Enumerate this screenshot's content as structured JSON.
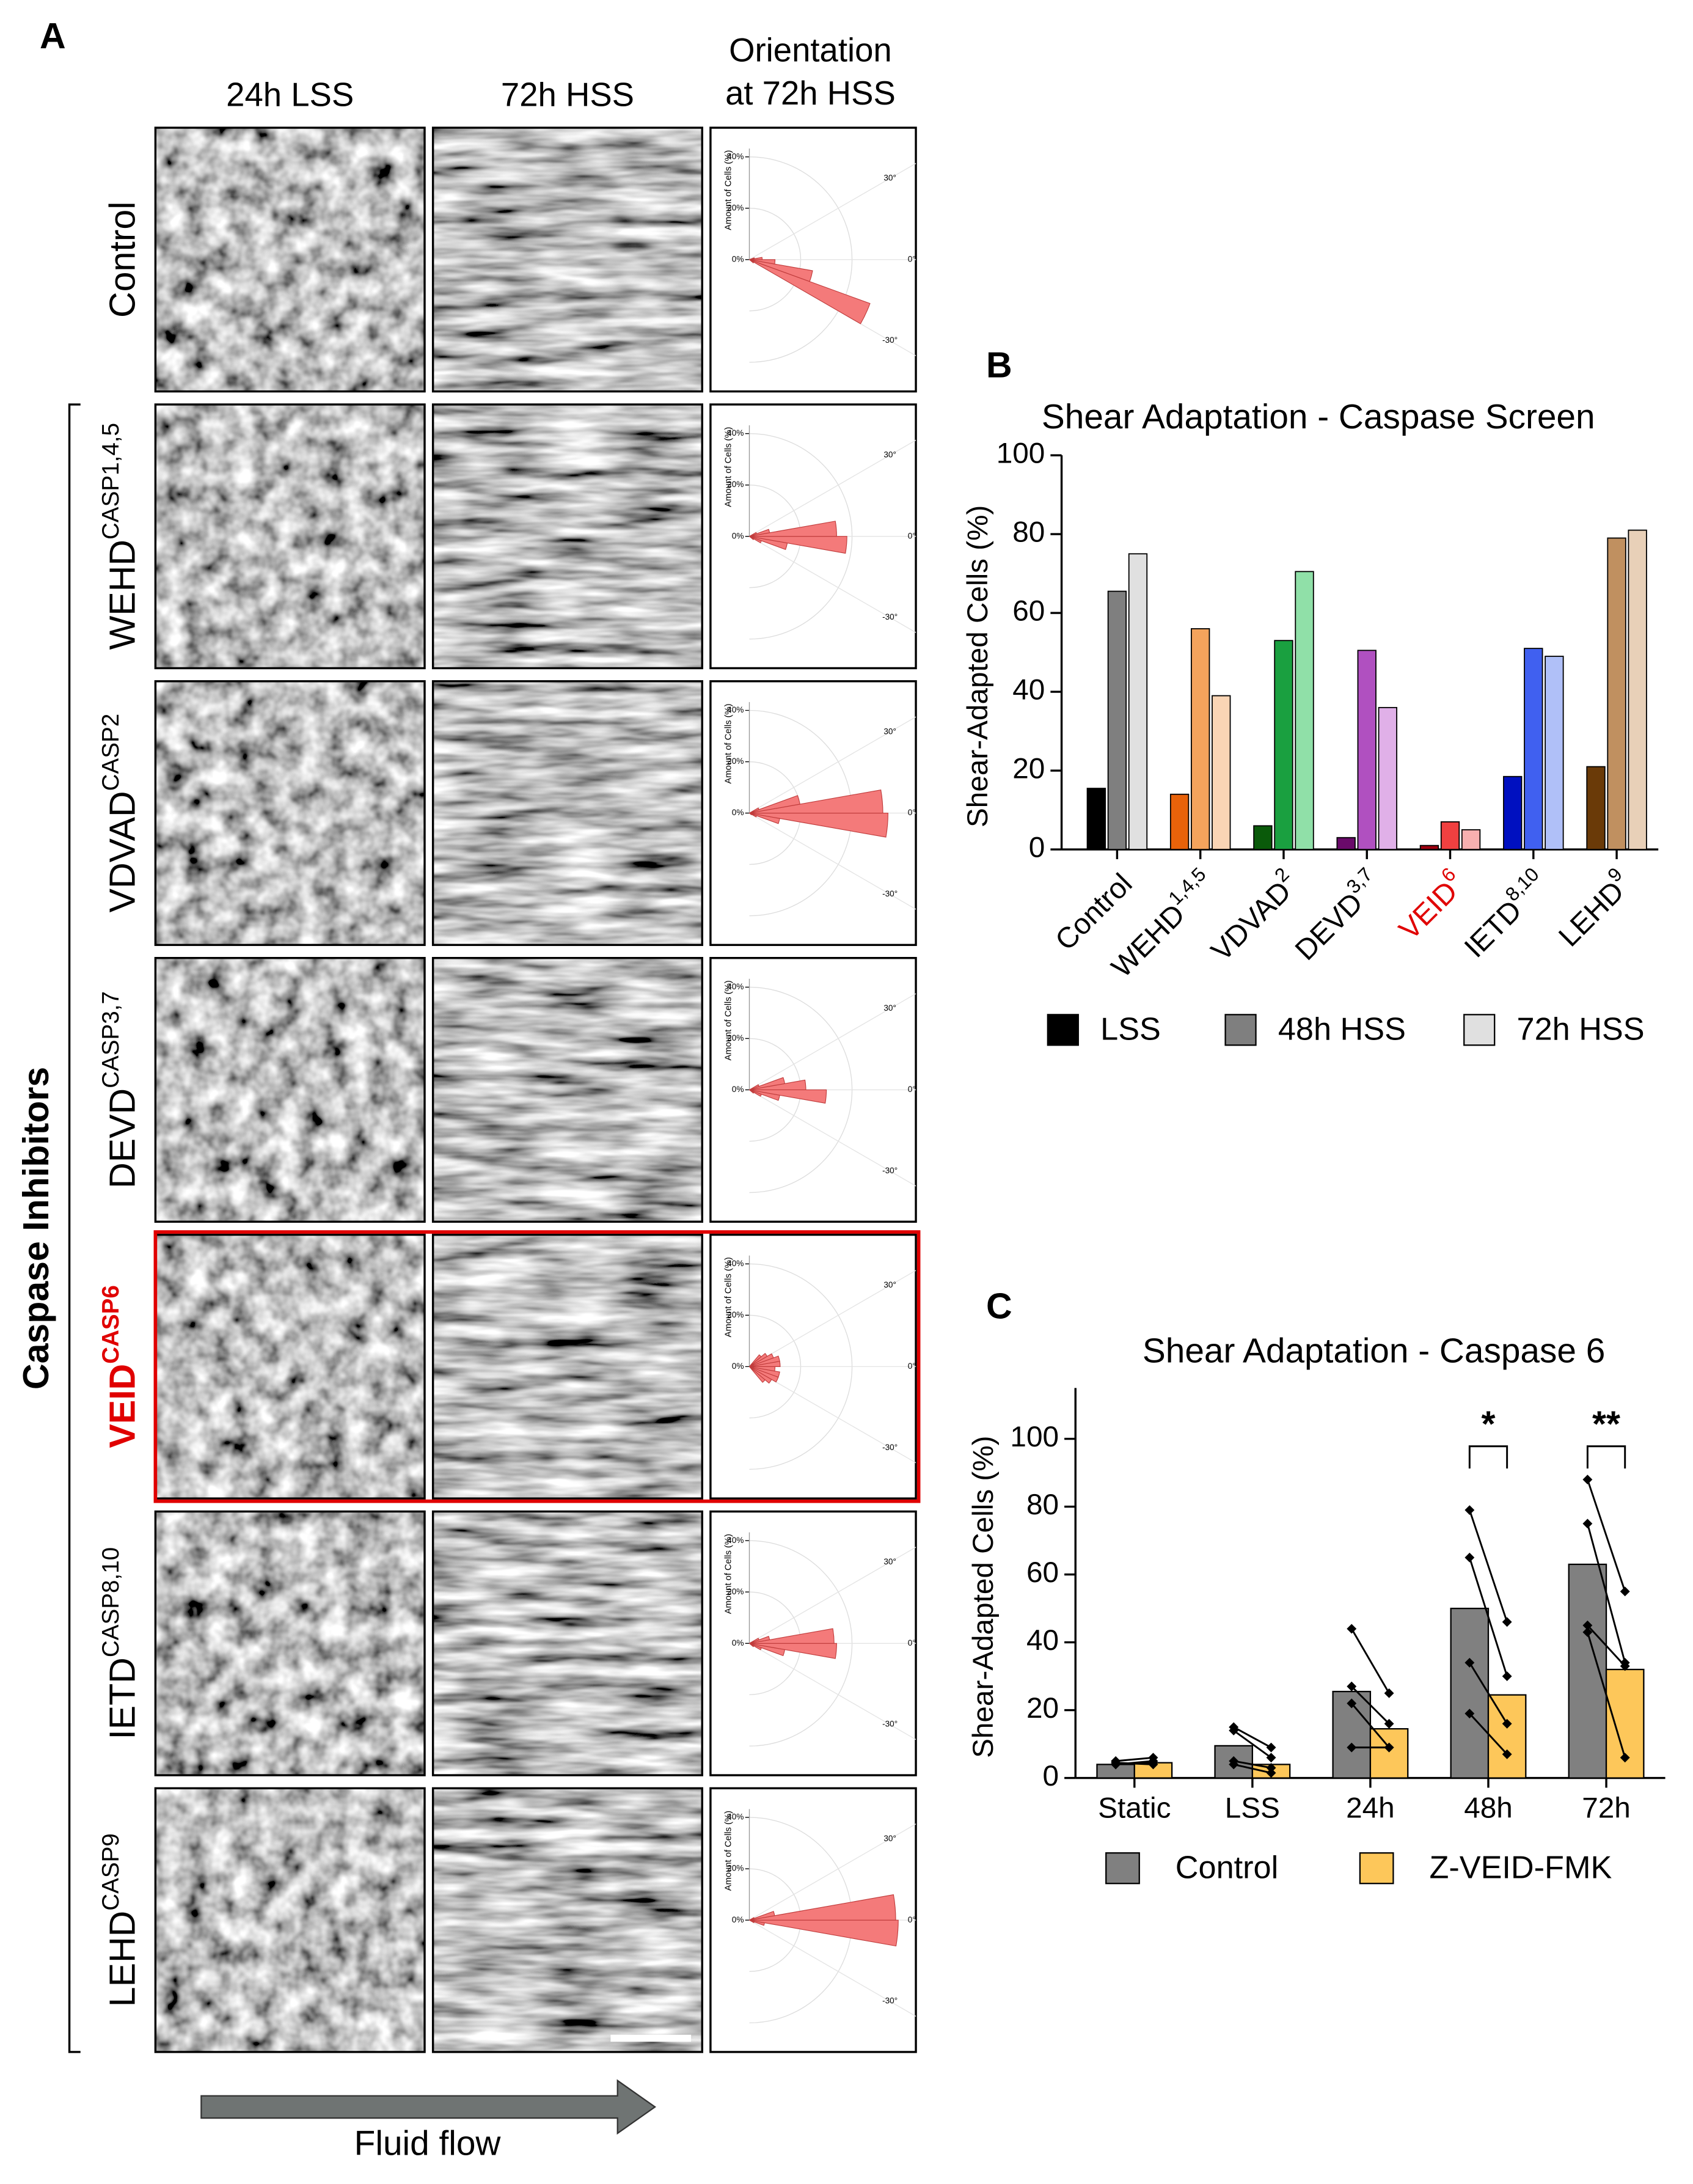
{
  "panel_a": {
    "label": "A",
    "column_headers": [
      "24h LSS",
      "72h HSS"
    ],
    "orientation_header": [
      "Orientation",
      "at 72h HSS"
    ],
    "group_label": "Caspase Inhibitors",
    "flow_label": "Fluid flow",
    "polar": {
      "axis_label": "Amount of Cells (%)",
      "rticks": [
        {
          "value": 0,
          "label": "0%"
        },
        {
          "value": 20,
          "label": "20%"
        },
        {
          "value": 40,
          "label": "40%"
        }
      ],
      "angle_ticks": [
        {
          "value": 30,
          "label": "30°"
        },
        {
          "value": 0,
          "label": "0°"
        },
        {
          "value": -30,
          "label": "-30°"
        }
      ],
      "bin_edges": [
        -50,
        -40,
        -30,
        -20,
        -10,
        0,
        10,
        20,
        30,
        40,
        50
      ],
      "color": "#f47a7a"
    },
    "rows": [
      {
        "name": "Control",
        "sup": null,
        "highlight": false,
        "rose": [
          0,
          2,
          50,
          25,
          10,
          5,
          2,
          0,
          0,
          0
        ]
      },
      {
        "name": "WEHD",
        "sup": "CASP1,4,5",
        "highlight": false,
        "rose": [
          0,
          2,
          5,
          15,
          38,
          34,
          8,
          3,
          0,
          0
        ]
      },
      {
        "name": "VDVAD",
        "sup": "CASP2",
        "highlight": false,
        "rose": [
          0,
          1,
          3,
          12,
          54,
          52,
          20,
          4,
          0,
          0
        ]
      },
      {
        "name": "DEVD",
        "sup": "CASP3,7",
        "highlight": false,
        "rose": [
          0,
          2,
          5,
          12,
          30,
          22,
          14,
          4,
          0,
          0
        ]
      },
      {
        "name": "VEID",
        "sup": "CASP6",
        "highlight": true,
        "rose": [
          8,
          10,
          12,
          12,
          10,
          12,
          12,
          10,
          8,
          6
        ]
      },
      {
        "name": "IETD",
        "sup": "CASP8,10",
        "highlight": false,
        "rose": [
          0,
          2,
          5,
          14,
          34,
          33,
          8,
          4,
          0,
          0
        ]
      },
      {
        "name": "LEHD",
        "sup": "CASP9",
        "highlight": false,
        "rose": [
          0,
          0,
          2,
          6,
          58,
          57,
          10,
          2,
          0,
          0
        ]
      }
    ]
  },
  "chart_data": [
    {
      "type": "bar",
      "panel_label": "B",
      "title": "Shear Adaptation - Caspase Screen",
      "y_label": "Shear-Adapted Cells (%)",
      "categories": [
        "Control",
        "WEHD",
        "VDVAD",
        "DEVD",
        "VEID",
        "IETD",
        "LEHD"
      ],
      "category_superscripts": [
        null,
        "1,4,5",
        "2",
        "3,7",
        "6",
        "8,10",
        "9"
      ],
      "label_colors": [
        null,
        null,
        null,
        null,
        "#e00000",
        null,
        null
      ],
      "ylim": [
        0,
        100
      ],
      "yticks": [
        0,
        20,
        40,
        60,
        80,
        100
      ],
      "series": [
        {
          "name": "LSS",
          "color": "#000000",
          "values": [
            15.5,
            14,
            6,
            3,
            1,
            18.5,
            21
          ],
          "colors": [
            "#000000",
            "#e8620a",
            "#0a5a0a",
            "#6a0a6a",
            "#a00010",
            "#0010c0",
            "#6a3a08"
          ]
        },
        {
          "name": "48h HSS",
          "color": "#7f7f7f",
          "values": [
            65.5,
            56,
            53,
            50.5,
            7,
            51,
            79
          ],
          "colors": [
            "#7f7f7f",
            "#f4a35c",
            "#1aa040",
            "#b050c0",
            "#f04040",
            "#4060f0",
            "#c09060"
          ]
        },
        {
          "name": "72h HSS",
          "color": "#e0e0e0",
          "values": [
            75,
            39,
            70.5,
            36,
            5,
            49,
            81
          ],
          "colors": [
            "#e0e0e0",
            "#fad5b5",
            "#90e0a8",
            "#e0b0e8",
            "#f8b0b0",
            "#b0c0f8",
            "#e8d0b8"
          ]
        }
      ]
    },
    {
      "type": "paired_bar",
      "panel_label": "C",
      "title": "Shear Adaptation - Caspase 6",
      "y_label": "Shear-Adapted Cells (%)",
      "categories": [
        "Static",
        "LSS",
        "24h",
        "48h",
        "72h"
      ],
      "significance": [
        null,
        null,
        null,
        "*",
        "**"
      ],
      "ylim": [
        0,
        115
      ],
      "yticks": [
        0,
        20,
        40,
        60,
        80,
        100
      ],
      "series": [
        {
          "name": "Control",
          "color": "#808080",
          "values": [
            4,
            9.5,
            25.5,
            50,
            63
          ],
          "points": [
            [
              4,
              5,
              4.5,
              4
            ],
            [
              15,
              14,
              5,
              4
            ],
            [
              44,
              27,
              22,
              9
            ],
            [
              79,
              65,
              34,
              19
            ],
            [
              88,
              75,
              45,
              43
            ]
          ]
        },
        {
          "name": "Z-VEID-FMK",
          "color": "#fdc75a",
          "values": [
            4.5,
            4,
            14.5,
            24.5,
            32
          ],
          "points": [
            [
              5,
              6,
              4,
              4.5
            ],
            [
              9,
              6,
              3,
              1.5
            ],
            [
              25,
              16,
              9,
              9
            ],
            [
              46,
              30,
              16,
              7
            ],
            [
              55,
              34,
              33,
              6
            ]
          ]
        }
      ]
    }
  ]
}
